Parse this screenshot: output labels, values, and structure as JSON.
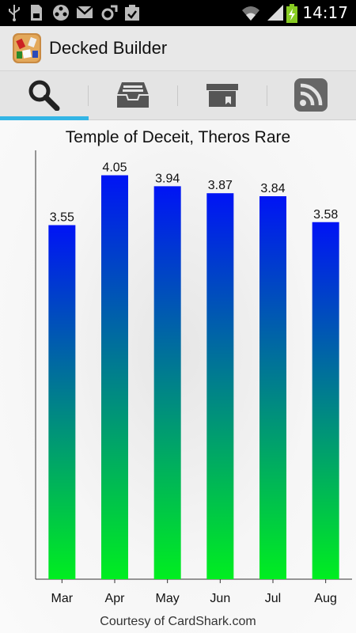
{
  "status_bar": {
    "time": "14:17",
    "icons": [
      "usb-icon",
      "sd-card-icon",
      "media-icon",
      "gmail-icon",
      "sync-icon",
      "checklist-icon",
      "wifi-icon",
      "signal-icon",
      "battery-charging-icon"
    ]
  },
  "app": {
    "title": "Decked Builder",
    "icon": "decked-builder-app-icon"
  },
  "tabs": [
    {
      "name": "search",
      "icon": "search-icon",
      "selected": true
    },
    {
      "name": "inbox",
      "icon": "inbox-tray-icon",
      "selected": false
    },
    {
      "name": "archive",
      "icon": "archive-box-icon",
      "selected": false
    },
    {
      "name": "rss",
      "icon": "rss-feed-icon",
      "selected": false
    }
  ],
  "colors": {
    "accent": "#33b5e5",
    "bar_top": "#0014f5",
    "bar_bottom": "#00ee20"
  },
  "chart_data": {
    "type": "bar",
    "title": "Temple of Deceit, Theros Rare",
    "categories": [
      "Mar",
      "Apr",
      "May",
      "Jun",
      "Jul",
      "Aug"
    ],
    "values": [
      3.55,
      4.05,
      3.94,
      3.87,
      3.84,
      3.58
    ],
    "value_labels": [
      "3.55",
      "4.05",
      "3.94",
      "3.87",
      "3.84",
      "3.58"
    ],
    "xlabel": "",
    "ylabel": "",
    "ylim": [
      0,
      4.3
    ],
    "grid": false,
    "legend": "none"
  },
  "footer": {
    "credit": "Courtesy of CardShark.com"
  }
}
